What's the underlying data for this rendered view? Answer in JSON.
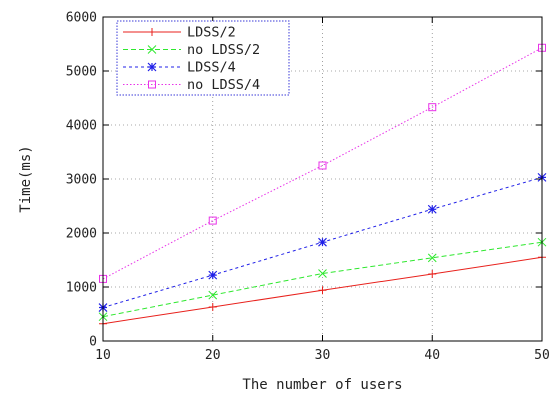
{
  "chart_data": {
    "type": "line",
    "xlabel": "The number of users",
    "ylabel": "Time(ms)",
    "x": [
      10,
      20,
      30,
      40,
      50
    ],
    "xlim": [
      10,
      50
    ],
    "ylim": [
      0,
      6000
    ],
    "xticks": [
      10,
      20,
      30,
      40,
      50
    ],
    "yticks": [
      0,
      1000,
      2000,
      3000,
      4000,
      5000,
      6000
    ],
    "grid": true,
    "legend_position": "top-left",
    "series": [
      {
        "name": "LDSS/2",
        "values": [
          320,
          630,
          940,
          1240,
          1550
        ],
        "color": "#e8211c",
        "marker": "plus",
        "dash": "solid"
      },
      {
        "name": "no LDSS/2",
        "values": [
          450,
          850,
          1250,
          1540,
          1830
        ],
        "color": "#2ee82e",
        "marker": "cross",
        "dash": "dashed"
      },
      {
        "name": "LDSS/4",
        "values": [
          620,
          1220,
          1830,
          2440,
          3030
        ],
        "color": "#2020e8",
        "marker": "star",
        "dash": "dotted"
      },
      {
        "name": "no LDSS/4",
        "values": [
          1150,
          2230,
          3250,
          4330,
          5430
        ],
        "color": "#e832e8",
        "marker": "square",
        "dash": "dotted-fine"
      }
    ]
  }
}
